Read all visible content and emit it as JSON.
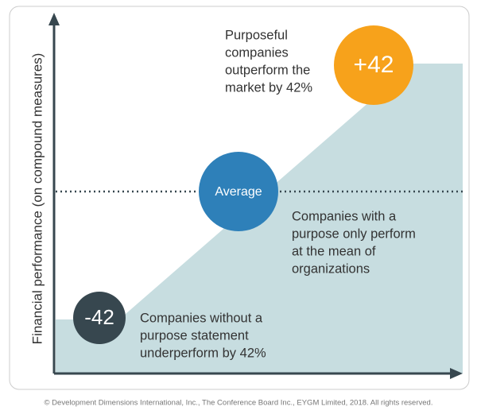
{
  "y_axis_label": "Financial performance (on compound measures)",
  "circles": {
    "top": "+42",
    "middle": "Average",
    "bottom": "-42"
  },
  "notes": {
    "top": [
      "Purposeful",
      "companies",
      "outperform the",
      "market by 42%"
    ],
    "middle": [
      "Companies with a",
      "purpose only perform",
      "at the mean of",
      "organizations"
    ],
    "bottom": [
      "Companies without a",
      "purpose statement",
      "underperform by 42%"
    ]
  },
  "footer": "© Development Dimensions International, Inc., The Conference Board Inc., EYGM Limited, 2018. All rights reserved."
}
